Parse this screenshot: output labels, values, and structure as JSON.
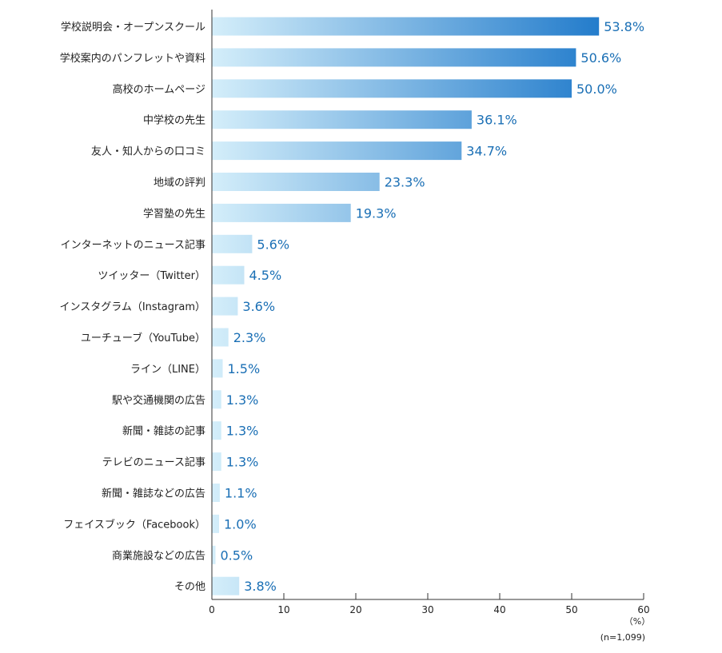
{
  "chart_data": {
    "type": "bar",
    "orientation": "horizontal",
    "categories": [
      "学校説明会・オープンスクール",
      "学校案内のパンフレットや資料",
      "高校のホームページ",
      "中学校の先生",
      "友人・知人からの口コミ",
      "地域の評判",
      "学習塾の先生",
      "インターネットのニュース記事",
      "ツイッター（Twitter）",
      "インスタグラム（Instagram）",
      "ユーチューブ（YouTube）",
      "ライン（LINE）",
      "駅や交通機関の広告",
      "新聞・雑誌の記事",
      "テレビのニュース記事",
      "新聞・雑誌などの広告",
      "フェイスブック（Facebook）",
      "商業施設などの広告",
      "その他"
    ],
    "values": [
      53.8,
      50.6,
      50.0,
      36.1,
      34.7,
      23.3,
      19.3,
      5.6,
      4.5,
      3.6,
      2.3,
      1.5,
      1.3,
      1.3,
      1.3,
      1.1,
      1.0,
      0.5,
      3.8
    ],
    "value_labels": [
      "53.8%",
      "50.6%",
      "50.0%",
      "36.1%",
      "34.7%",
      "23.3%",
      "19.3%",
      "5.6%",
      "4.5%",
      "3.6%",
      "2.3%",
      "1.5%",
      "1.3%",
      "1.3%",
      "1.3%",
      "1.1%",
      "1.0%",
      "0.5%",
      "3.8%"
    ],
    "xlim": [
      0,
      60
    ],
    "xticks": [
      0,
      10,
      20,
      30,
      40,
      50,
      60
    ],
    "unit_label": "（%）",
    "sample_note": "(n=1,099)",
    "grid": false,
    "colors": {
      "bar_start": "#d4eefa",
      "bar_end": "#0f6fc6",
      "value_text": "#1a6fb5",
      "axis": "#333333",
      "text": "#222222"
    }
  }
}
